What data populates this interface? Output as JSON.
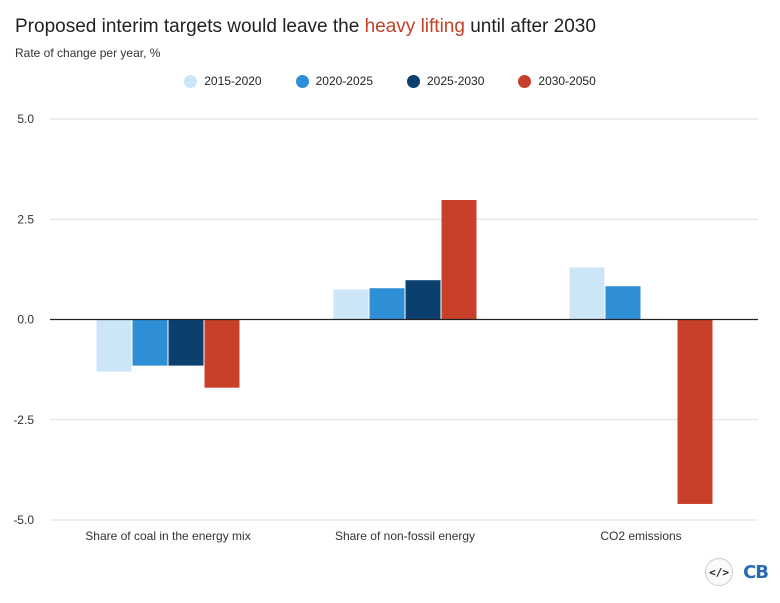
{
  "header": {
    "title_before": "Proposed interim targets would leave the ",
    "title_highlight": "heavy lifting",
    "title_after": " until after 2030",
    "subtitle": "Rate of change per year, %"
  },
  "colors": {
    "highlight": "#c44127",
    "series": [
      "#cce6f8",
      "#2f8fd6",
      "#0a3f6e",
      "#c8402a"
    ]
  },
  "footer": {
    "embed_icon_label": "</>",
    "logo_text": "CB"
  },
  "chart_data": {
    "type": "bar",
    "title": "Proposed interim targets would leave the heavy lifting until after 2030",
    "subtitle": "Rate of change per year, %",
    "categories": [
      "Share of coal in the energy mix",
      "Share of non-fossil energy",
      "CO2 emissions"
    ],
    "series": [
      {
        "name": "2015-2020",
        "color": "#cce6f8",
        "values": [
          -1.3,
          0.75,
          1.3
        ]
      },
      {
        "name": "2020-2025",
        "color": "#2f8fd6",
        "values": [
          -1.15,
          0.78,
          0.83
        ]
      },
      {
        "name": "2025-2030",
        "color": "#0a3f6e",
        "values": [
          -1.15,
          0.98,
          null
        ]
      },
      {
        "name": "2030-2050",
        "color": "#c8402a",
        "values": [
          -1.7,
          2.98,
          -4.6
        ]
      }
    ],
    "y_ticks": [
      "5.0",
      "2.5",
      "0.0",
      "-2.5",
      "-5.0"
    ],
    "ylim": [
      -5,
      5
    ],
    "grid": true,
    "legend": "top-center"
  }
}
